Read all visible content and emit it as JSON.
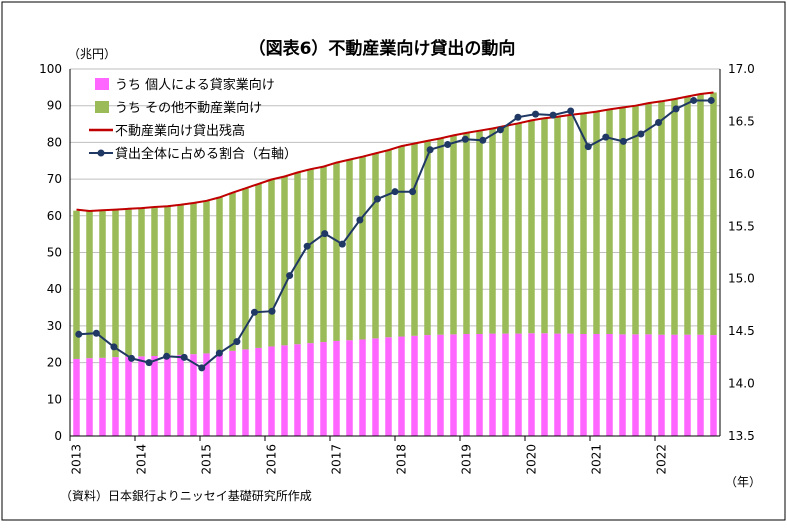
{
  "title": "（図表6）不動産業向け貸出の動向",
  "source": "（資料）日本銀行よりニッセイ基礎研究所作成",
  "chart_data": {
    "type": "bar",
    "title": "（図表6）不動産業向け貸出の動向",
    "ylabel": "（兆円）",
    "xlabel": "（年）",
    "ylim": [
      0,
      100
    ],
    "yticks": [
      0,
      10,
      20,
      30,
      40,
      50,
      60,
      70,
      80,
      90,
      100
    ],
    "y2lim": [
      13.5,
      17.0
    ],
    "y2ticks": [
      "13.5",
      "14.0",
      "14.5",
      "15.0",
      "15.5",
      "16.0",
      "16.5",
      "17.0"
    ],
    "x_year_labels": [
      "2013",
      "2014",
      "2015",
      "2016",
      "2017",
      "2018",
      "2019",
      "2020",
      "2021",
      "2022"
    ],
    "grid": true,
    "legend_position": "top-left",
    "stacked": true,
    "series": [
      {
        "name": "うち 個人による貸家業向け",
        "kind": "bar",
        "color": "#ff66ff",
        "values": [
          21.0,
          21.2,
          21.3,
          21.5,
          21.6,
          21.7,
          21.8,
          22.0,
          22.1,
          22.3,
          22.5,
          22.8,
          23.2,
          23.6,
          24.0,
          24.4,
          24.7,
          25.0,
          25.3,
          25.6,
          25.9,
          26.1,
          26.3,
          26.6,
          26.9,
          27.1,
          27.3,
          27.5,
          27.6,
          27.7,
          27.8,
          27.8,
          27.9,
          27.9,
          27.9,
          28.0,
          28.0,
          27.9,
          27.9,
          27.8,
          27.8,
          27.8,
          27.7,
          27.7,
          27.7,
          27.6,
          27.6,
          27.6,
          27.6,
          27.5
        ]
      },
      {
        "name": "うち その他不動産業向け",
        "kind": "bar",
        "color": "#9bbb59",
        "values": [
          40.4,
          40.0,
          40.1,
          40.1,
          40.2,
          40.4,
          40.6,
          40.6,
          40.9,
          41.2,
          41.6,
          42.2,
          43.1,
          43.9,
          44.7,
          45.5,
          46.0,
          46.8,
          47.4,
          47.8,
          48.6,
          49.2,
          49.8,
          50.4,
          51.0,
          51.9,
          52.4,
          52.9,
          53.5,
          54.2,
          54.8,
          55.4,
          55.9,
          56.6,
          57.3,
          58.0,
          58.6,
          59.1,
          59.6,
          60.1,
          60.6,
          61.2,
          61.8,
          62.3,
          63.0,
          63.6,
          64.2,
          64.9,
          65.6,
          66.1
        ]
      },
      {
        "name": "不動産業向け貸出残高",
        "kind": "line",
        "color": "#c00000",
        "values": [
          61.7,
          61.3,
          61.5,
          61.7,
          61.9,
          62.1,
          62.4,
          62.6,
          63.0,
          63.5,
          64.1,
          65.0,
          66.3,
          67.5,
          68.7,
          69.9,
          70.7,
          71.8,
          72.7,
          73.4,
          74.5,
          75.3,
          76.1,
          77.0,
          77.9,
          79.0,
          79.7,
          80.4,
          81.1,
          81.9,
          82.6,
          83.2,
          83.8,
          84.5,
          85.2,
          86.0,
          86.6,
          87.0,
          87.5,
          87.9,
          88.4,
          89.0,
          89.5,
          90.0,
          90.7,
          91.2,
          91.8,
          92.5,
          93.2,
          93.6
        ]
      },
      {
        "name": "貸出全体に占める割合（右軸）",
        "kind": "line-marker",
        "color": "#1f3864",
        "axis": "right",
        "values": [
          14.47,
          14.48,
          14.35,
          14.24,
          14.2,
          14.26,
          14.25,
          14.15,
          14.29,
          14.4,
          14.68,
          14.69,
          15.03,
          15.31,
          15.43,
          15.33,
          15.56,
          15.76,
          15.83,
          15.83,
          16.23,
          16.28,
          16.33,
          16.32,
          16.42,
          16.54,
          16.57,
          16.56,
          16.6,
          16.26,
          16.35,
          16.31,
          16.38,
          16.49,
          16.62,
          16.7,
          16.7
        ]
      }
    ]
  }
}
